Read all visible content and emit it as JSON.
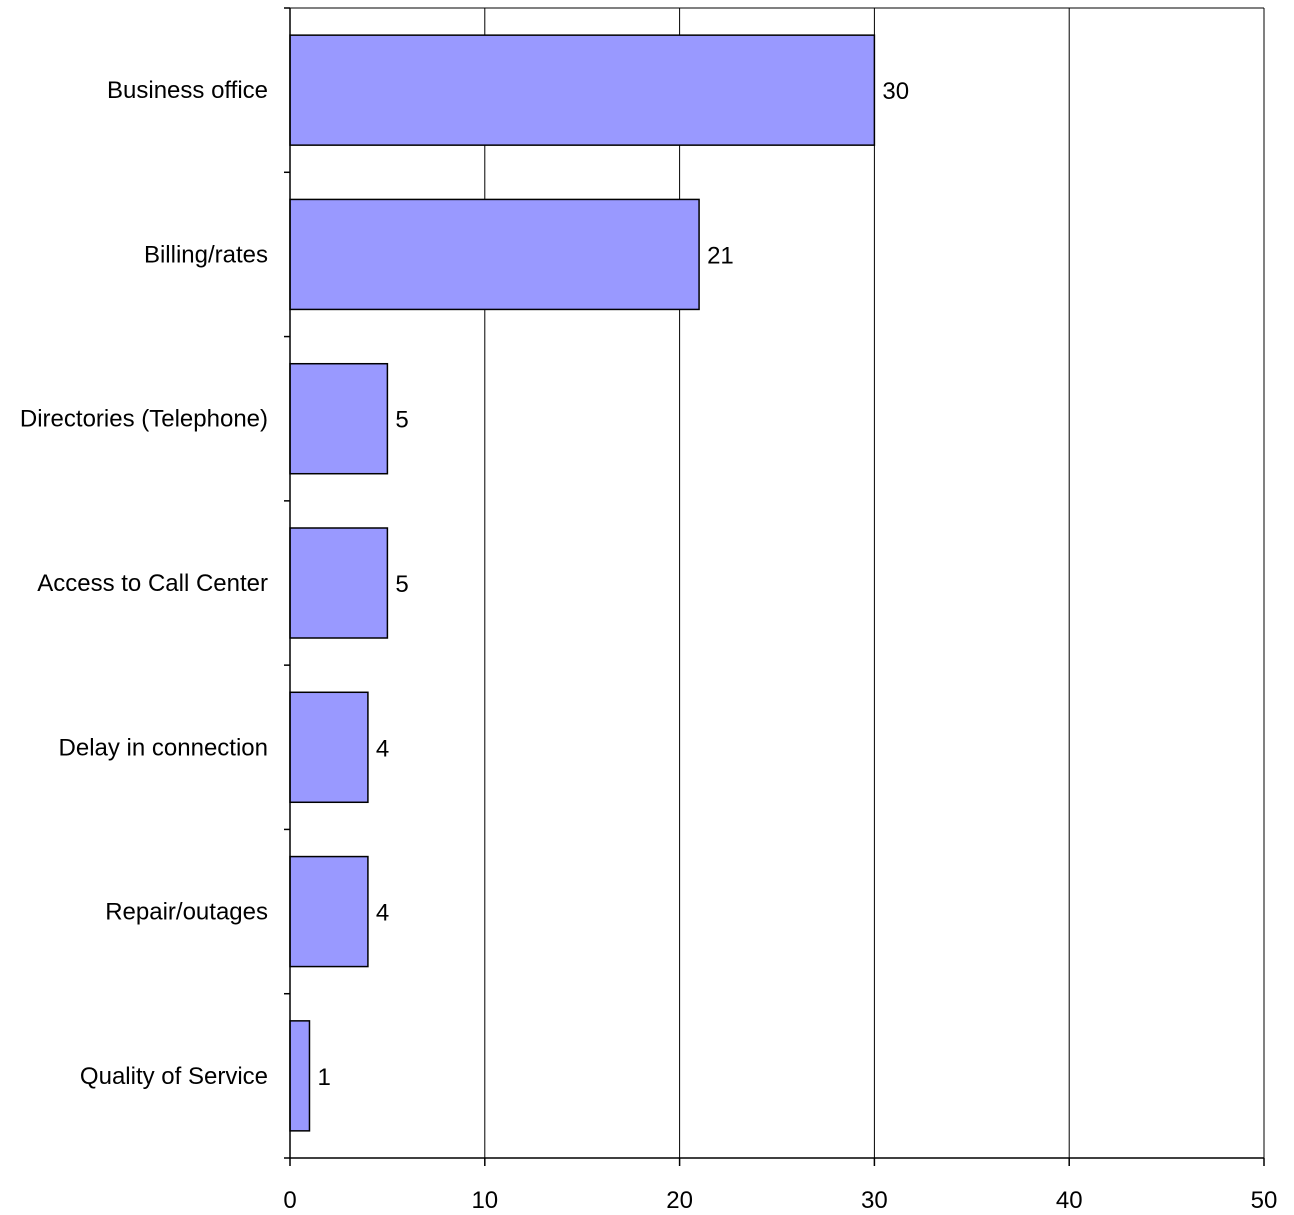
{
  "chart_data": {
    "type": "bar",
    "orientation": "horizontal",
    "categories": [
      "Business office",
      "Billing/rates",
      "Directories (Telephone)",
      "Access to Call Center",
      "Delay in connection",
      "Repair/outages",
      "Quality of Service"
    ],
    "values": [
      30,
      21,
      5,
      5,
      4,
      4,
      1
    ],
    "data_labels": [
      "30",
      "21",
      "5",
      "5",
      "4",
      "4",
      "1"
    ],
    "xlim": [
      0,
      50
    ],
    "x_ticks": [
      0,
      10,
      20,
      30,
      40,
      50
    ],
    "x_tick_labels": [
      "0",
      "10",
      "20",
      "30",
      "40",
      "50"
    ],
    "grid": true,
    "legend": false,
    "bar_color": "#9999ff",
    "bar_edge_color": "#000000"
  }
}
